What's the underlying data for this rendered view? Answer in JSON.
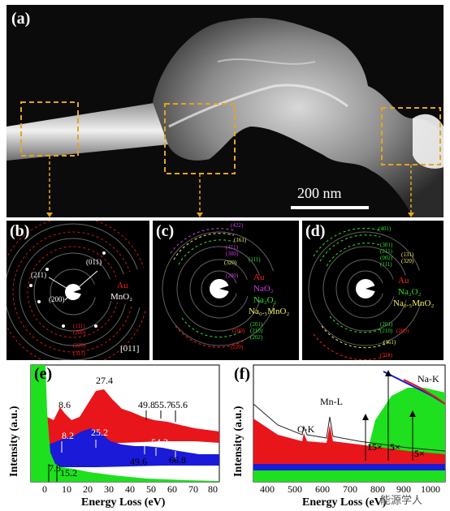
{
  "panels": {
    "a": {
      "label": "(a)",
      "scale_bar": "200 nm"
    },
    "b": {
      "label": "(b)",
      "rings": [
        "(011)",
        "(211)",
        "(200)"
      ],
      "legend_au": "Au",
      "legend_mno2": "MnO₂",
      "zone": "[011]",
      "au_rings": [
        "(111)",
        "(200)",
        "(220)",
        "(311)"
      ]
    },
    "c": {
      "label": "(c)",
      "top_rings": [
        "(422)",
        "(161)",
        "(411)",
        "(300)",
        "(111)",
        "(320)",
        "(200)"
      ],
      "legend": [
        "Au",
        "NaO₂",
        "Na₂O₂",
        "Na₀.₅MnO₂"
      ],
      "bottom_rings": [
        "(201)",
        "(210)",
        "(202)",
        "(200)",
        "(220)"
      ]
    },
    "d": {
      "label": "(d)",
      "top_rings": [
        "(401)",
        "(301)",
        "(211)",
        "(002)",
        "(111)",
        "(131)",
        "(320)"
      ],
      "legend": [
        "Au",
        "Na₂O₂",
        "Na₀.₅MnO₂"
      ],
      "bottom_rings": [
        "(201)",
        "(210)",
        "(200)",
        "(161)",
        "(311)"
      ]
    },
    "e": {
      "label": "(e)",
      "peaks_red": [
        "8.6",
        "27.4",
        "49.8",
        "55.7",
        "65.6"
      ],
      "peaks_blue": [
        "8.2",
        "25.2",
        "54.2",
        "49.6",
        "66.8"
      ],
      "peaks_green": [
        "7.8",
        "15.2"
      ],
      "xlabel": "Energy Loss (eV)",
      "ylabel": "Intensity (a.u.)",
      "xticks": [
        "0",
        "10",
        "20",
        "30",
        "40",
        "50",
        "60",
        "70",
        "80"
      ]
    },
    "f": {
      "label": "(f)",
      "edges": [
        "O-K",
        "Mn-L",
        "Na-K"
      ],
      "mult": [
        "15×",
        "5×",
        "5×"
      ],
      "xlabel": "Energy Loss (eV)",
      "ylabel": "Intensity (a.u.)",
      "xticks": [
        "400",
        "500",
        "600",
        "700",
        "800",
        "900",
        "1000"
      ]
    }
  },
  "watermark": "能源学人",
  "colors": {
    "red": "#e8151b",
    "blue": "#1a1ad8",
    "green": "#1ee01e",
    "orange": "#e6a41c",
    "au_red": "#ff2020",
    "magenta": "#d040e8",
    "green_text": "#30e030",
    "yellow_text": "#f0f060"
  }
}
